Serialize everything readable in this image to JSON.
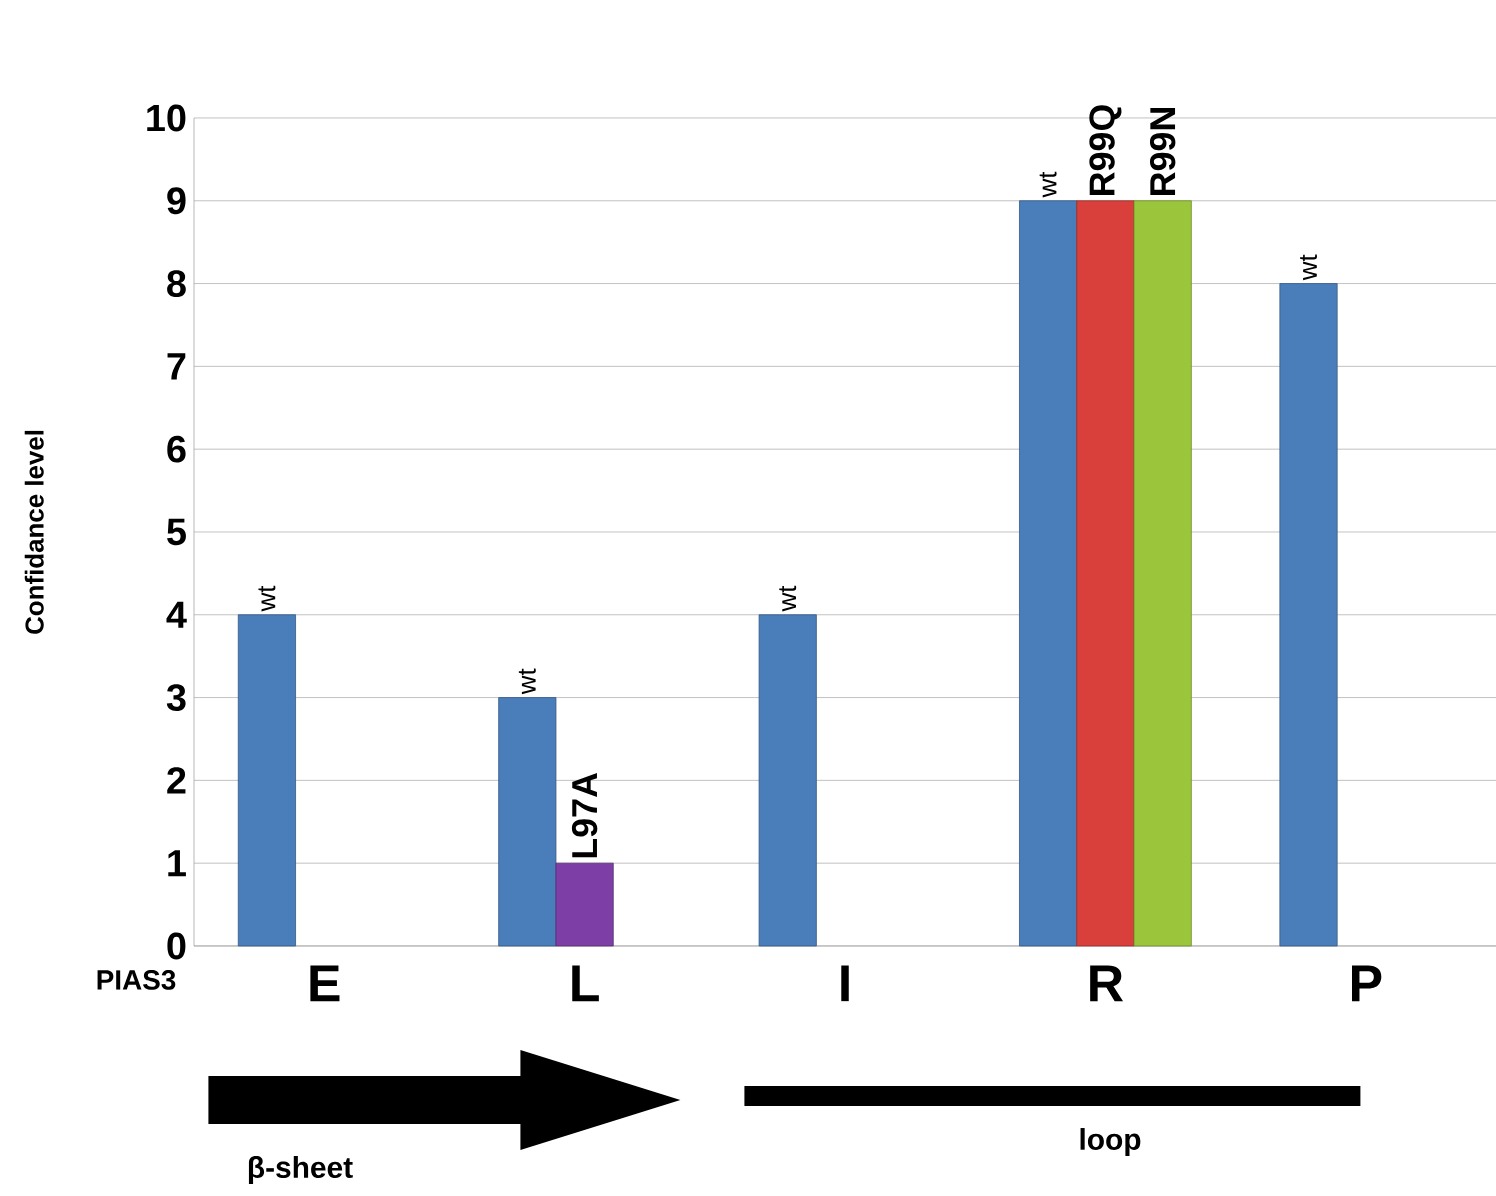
{
  "chart_data": {
    "type": "bar",
    "ylabel": "Confidance level",
    "categories": [
      "E",
      "L",
      "I",
      "R",
      "P"
    ],
    "series": [
      {
        "color": "#4a7ebb",
        "values": [
          4,
          3,
          4,
          9,
          8
        ],
        "value_labels": [
          "wt",
          "wt",
          "wt",
          "wt",
          "wt"
        ]
      },
      {
        "colors": [
          null,
          "#7d3fa6",
          null,
          "#d9403b",
          null
        ],
        "values": [
          null,
          1,
          null,
          9,
          null
        ],
        "value_labels": [
          null,
          "L97A",
          null,
          "R99Q",
          null
        ]
      },
      {
        "color": "#9bc63b",
        "values": [
          null,
          null,
          null,
          9,
          null
        ],
        "value_labels": [
          null,
          null,
          null,
          "R99N",
          null
        ]
      }
    ],
    "ylim": [
      0,
      10
    ],
    "yticks": [
      0,
      1,
      2,
      3,
      4,
      5,
      6,
      7,
      8,
      9,
      10
    ],
    "grid": "y",
    "annotations": [
      "PIAS3",
      "β-sheet",
      "loop"
    ]
  }
}
